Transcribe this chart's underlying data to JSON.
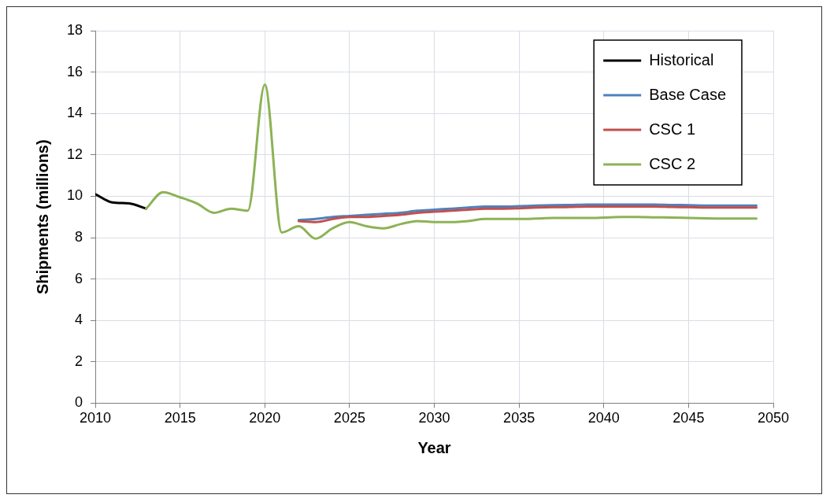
{
  "chart_data": {
    "type": "line",
    "xlabel": "Year",
    "ylabel": "Shipments (millions)",
    "xlim": [
      2010,
      2050
    ],
    "xticks": [
      2010,
      2015,
      2020,
      2025,
      2030,
      2035,
      2040,
      2045,
      2050
    ],
    "ylim": [
      0,
      18
    ],
    "yticks": [
      0,
      2,
      4,
      6,
      8,
      10,
      12,
      14,
      16,
      18
    ],
    "grid": true,
    "legend": "top right",
    "marker": "none",
    "line_style": "solid",
    "series": [
      {
        "name": "Historical",
        "color": "#000000",
        "x": [
          2010,
          2011,
          2012,
          2013
        ],
        "values": [
          10.1,
          9.7,
          9.65,
          9.4
        ]
      },
      {
        "name": "Base Case",
        "color": "#4f81bd",
        "x": [
          2022,
          2023,
          2024,
          2025,
          2026,
          2027,
          2028,
          2029,
          2030,
          2031,
          2032,
          2033,
          2034,
          2035,
          2036,
          2037,
          2038,
          2039,
          2040,
          2041,
          2042,
          2043,
          2044,
          2045,
          2046,
          2047,
          2048,
          2049
        ],
        "values": [
          8.85,
          8.9,
          9.0,
          9.05,
          9.1,
          9.15,
          9.2,
          9.3,
          9.35,
          9.4,
          9.45,
          9.5,
          9.5,
          9.52,
          9.55,
          9.57,
          9.58,
          9.6,
          9.6,
          9.6,
          9.6,
          9.6,
          9.58,
          9.57,
          9.55,
          9.55,
          9.55,
          9.55
        ]
      },
      {
        "name": "CSC 1",
        "color": "#c0504d",
        "x": [
          2022,
          2023,
          2024,
          2025,
          2026,
          2027,
          2028,
          2029,
          2030,
          2031,
          2032,
          2033,
          2034,
          2035,
          2036,
          2037,
          2038,
          2039,
          2040,
          2041,
          2042,
          2043,
          2044,
          2045,
          2046,
          2047,
          2048,
          2049
        ],
        "values": [
          8.8,
          8.75,
          8.9,
          9.0,
          9.0,
          9.05,
          9.1,
          9.2,
          9.25,
          9.3,
          9.35,
          9.4,
          9.4,
          9.42,
          9.45,
          9.47,
          9.48,
          9.5,
          9.5,
          9.5,
          9.5,
          9.5,
          9.48,
          9.47,
          9.45,
          9.45,
          9.45,
          9.45
        ]
      },
      {
        "name": "CSC 2",
        "color": "#8db255",
        "x": [
          2013,
          2014,
          2015,
          2016,
          2017,
          2018,
          2019,
          2020,
          2021,
          2022,
          2023,
          2024,
          2025,
          2026,
          2027,
          2028,
          2029,
          2030,
          2031,
          2032,
          2033,
          2034,
          2035,
          2036,
          2037,
          2038,
          2039,
          2040,
          2041,
          2042,
          2043,
          2044,
          2045,
          2046,
          2047,
          2048,
          2049
        ],
        "values": [
          9.4,
          10.2,
          9.95,
          9.65,
          9.2,
          9.4,
          9.3,
          15.4,
          8.25,
          8.55,
          7.95,
          8.45,
          8.75,
          8.55,
          8.45,
          8.65,
          8.8,
          8.75,
          8.75,
          8.8,
          8.9,
          8.9,
          8.9,
          8.92,
          8.95,
          8.95,
          8.95,
          8.97,
          9.0,
          9.0,
          8.98,
          8.97,
          8.95,
          8.93,
          8.92,
          8.92,
          8.92
        ]
      }
    ]
  }
}
